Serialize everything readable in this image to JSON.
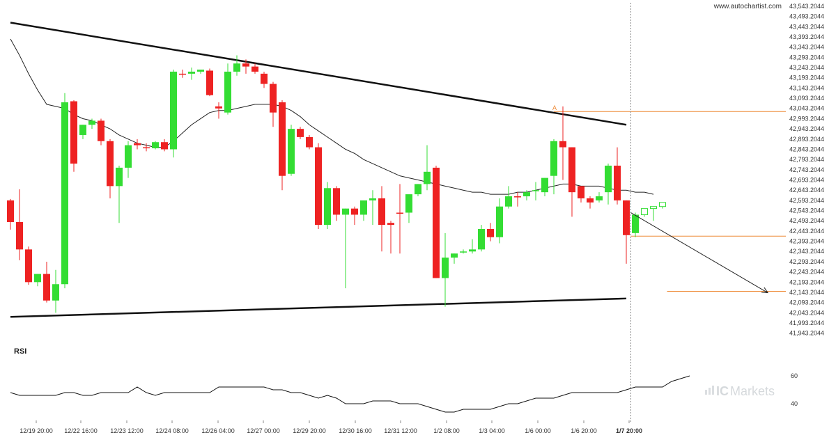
{
  "watermark": "www.autochartist.com",
  "brand": {
    "prefix": "IC",
    "name": "Markets"
  },
  "indicator_label": "RSI",
  "chart_data": [
    {
      "type": "candlestick",
      "ylim": [
        41918.2044,
        43553.2044
      ],
      "y_ticks": [
        "43,543.2044",
        "43,493.2044",
        "43,443.2044",
        "43,393.2044",
        "43,343.2044",
        "43,293.2044",
        "43,243.2044",
        "43,193.2044",
        "43,143.2044",
        "43,093.2044",
        "43,043.2044",
        "42,993.2044",
        "42,943.2044",
        "42,893.2044",
        "42,843.2044",
        "42,793.2044",
        "42,743.2044",
        "42,693.2044",
        "42,643.2044",
        "42,593.2044",
        "42,543.2044",
        "42,493.2044",
        "42,443.2044",
        "42,393.2044",
        "42,343.2044",
        "42,293.2044",
        "42,243.2044",
        "42,193.2044",
        "42,143.2044",
        "42,093.2044",
        "42,043.2044",
        "41,993.2044",
        "41,943.2044"
      ],
      "x_ticks": [
        "12/19 20:00",
        "12/22 16:00",
        "12/23 12:00",
        "12/24 08:00",
        "12/26 04:00",
        "12/27 00:00",
        "12/29 20:00",
        "12/30 16:00",
        "12/31 12:00",
        "1/2 08:00",
        "1/3 04:00",
        "1/6 00:00",
        "1/6 20:00",
        "1/7 20:00"
      ],
      "highlighted_x_tick": "1/7 20:00",
      "colors": {
        "up": "#33dd33",
        "down": "#ee2222",
        "pattern": "#111111",
        "ma": "#222222",
        "levels": "#ee8833",
        "projection": "#222222",
        "cursor": "#888888"
      },
      "candles": [
        {
          "o": 42593,
          "h": 42600,
          "l": 42450,
          "c": 42487,
          "f": false
        },
        {
          "o": 42487,
          "h": 42647,
          "l": 42300,
          "c": 42353,
          "f": false
        },
        {
          "o": 42353,
          "h": 42367,
          "l": 42180,
          "c": 42193,
          "f": false
        },
        {
          "o": 42193,
          "h": 42233,
          "l": 42173,
          "c": 42233,
          "f": true
        },
        {
          "o": 42233,
          "h": 42293,
          "l": 42093,
          "c": 42103,
          "f": false
        },
        {
          "o": 42103,
          "h": 42253,
          "l": 42043,
          "c": 42183,
          "f": true
        },
        {
          "o": 42183,
          "h": 43118,
          "l": 42163,
          "c": 43073,
          "f": true
        },
        {
          "o": 43078,
          "h": 43083,
          "l": 42733,
          "c": 42773,
          "f": false
        },
        {
          "o": 42913,
          "h": 42963,
          "l": 42893,
          "c": 42963,
          "f": true
        },
        {
          "o": 42963,
          "h": 42993,
          "l": 42943,
          "c": 42983,
          "f": true
        },
        {
          "o": 42983,
          "h": 42993,
          "l": 42863,
          "c": 42883,
          "f": false
        },
        {
          "o": 42883,
          "h": 42893,
          "l": 42603,
          "c": 42663,
          "f": false
        },
        {
          "o": 42663,
          "h": 42763,
          "l": 42483,
          "c": 42753,
          "f": true
        },
        {
          "o": 42753,
          "h": 42883,
          "l": 42703,
          "c": 42863,
          "f": true
        },
        {
          "o": 42863,
          "h": 42893,
          "l": 42843,
          "c": 42873,
          "f": false
        },
        {
          "o": 42853,
          "h": 42873,
          "l": 42833,
          "c": 42848,
          "f": false
        },
        {
          "o": 42848,
          "h": 42883,
          "l": 42843,
          "c": 42878,
          "f": true
        },
        {
          "o": 42878,
          "h": 42893,
          "l": 42833,
          "c": 42843,
          "f": false
        },
        {
          "o": 42843,
          "h": 43233,
          "l": 42803,
          "c": 43223,
          "f": true
        },
        {
          "o": 43213,
          "h": 43233,
          "l": 43193,
          "c": 43213,
          "f": false
        },
        {
          "o": 43213,
          "h": 43243,
          "l": 43183,
          "c": 43223,
          "f": true
        },
        {
          "o": 43223,
          "h": 43233,
          "l": 43213,
          "c": 43233,
          "f": true
        },
        {
          "o": 43228,
          "h": 43238,
          "l": 43103,
          "c": 43108,
          "f": false
        },
        {
          "o": 43043,
          "h": 43073,
          "l": 42993,
          "c": 43053,
          "f": false
        },
        {
          "o": 43023,
          "h": 43263,
          "l": 43013,
          "c": 43223,
          "f": true
        },
        {
          "o": 43223,
          "h": 43303,
          "l": 43203,
          "c": 43263,
          "f": true
        },
        {
          "o": 43263,
          "h": 43283,
          "l": 43213,
          "c": 43248,
          "f": false
        },
        {
          "o": 43248,
          "h": 43263,
          "l": 43213,
          "c": 43223,
          "f": false
        },
        {
          "o": 43213,
          "h": 43223,
          "l": 43143,
          "c": 43163,
          "f": false
        },
        {
          "o": 43163,
          "h": 43173,
          "l": 42953,
          "c": 43023,
          "f": false
        },
        {
          "o": 43073,
          "h": 43083,
          "l": 42643,
          "c": 42713,
          "f": false
        },
        {
          "o": 42943,
          "h": 42963,
          "l": 42713,
          "c": 42723,
          "f": true
        },
        {
          "o": 42943,
          "h": 42953,
          "l": 42893,
          "c": 42903,
          "f": false
        },
        {
          "o": 42903,
          "h": 42913,
          "l": 42843,
          "c": 42853,
          "f": false
        },
        {
          "o": 42853,
          "h": 42873,
          "l": 42453,
          "c": 42473,
          "f": false
        },
        {
          "o": 42473,
          "h": 42683,
          "l": 42453,
          "c": 42653,
          "f": true
        },
        {
          "o": 42653,
          "h": 42663,
          "l": 42493,
          "c": 42523,
          "f": false
        },
        {
          "o": 42523,
          "h": 42553,
          "l": 42163,
          "c": 42553,
          "f": true
        },
        {
          "o": 42553,
          "h": 42563,
          "l": 42473,
          "c": 42523,
          "f": false
        },
        {
          "o": 42523,
          "h": 42583,
          "l": 42493,
          "c": 42593,
          "f": true
        },
        {
          "o": 42593,
          "h": 42643,
          "l": 42473,
          "c": 42603,
          "f": true
        },
        {
          "o": 42603,
          "h": 42663,
          "l": 42343,
          "c": 42473,
          "f": false
        },
        {
          "o": 42483,
          "h": 42493,
          "l": 42333,
          "c": 42473,
          "f": false
        },
        {
          "o": 42533,
          "h": 42673,
          "l": 42333,
          "c": 42533,
          "f": false
        },
        {
          "o": 42533,
          "h": 42613,
          "l": 42483,
          "c": 42623,
          "f": true
        },
        {
          "o": 42623,
          "h": 42673,
          "l": 42613,
          "c": 42673,
          "f": true
        },
        {
          "o": 42673,
          "h": 42863,
          "l": 42643,
          "c": 42733,
          "f": true
        },
        {
          "o": 42753,
          "h": 42763,
          "l": 42213,
          "c": 42213,
          "f": false
        },
        {
          "o": 42213,
          "h": 42433,
          "l": 42073,
          "c": 42313,
          "f": true
        },
        {
          "o": 42313,
          "h": 42333,
          "l": 42283,
          "c": 42333,
          "f": true
        },
        {
          "o": 42343,
          "h": 42353,
          "l": 42333,
          "c": 42343,
          "f": true
        },
        {
          "o": 42343,
          "h": 42403,
          "l": 42333,
          "c": 42353,
          "f": true
        },
        {
          "o": 42353,
          "h": 42473,
          "l": 42343,
          "c": 42453,
          "f": true
        },
        {
          "o": 42453,
          "h": 42483,
          "l": 42393,
          "c": 42413,
          "f": false
        },
        {
          "o": 42413,
          "h": 42603,
          "l": 42383,
          "c": 42563,
          "f": true
        },
        {
          "o": 42563,
          "h": 42663,
          "l": 42553,
          "c": 42613,
          "f": true
        },
        {
          "o": 42613,
          "h": 42633,
          "l": 42563,
          "c": 42613,
          "f": false
        },
        {
          "o": 42613,
          "h": 42643,
          "l": 42593,
          "c": 42633,
          "f": true
        },
        {
          "o": 42643,
          "h": 42683,
          "l": 42593,
          "c": 42643,
          "f": true
        },
        {
          "o": 42633,
          "h": 42703,
          "l": 42613,
          "c": 42703,
          "f": true
        },
        {
          "o": 42713,
          "h": 42893,
          "l": 42623,
          "c": 42883,
          "f": true
        },
        {
          "o": 42883,
          "h": 43053,
          "l": 42693,
          "c": 42853,
          "f": false
        },
        {
          "o": 42853,
          "h": 42853,
          "l": 42513,
          "c": 42633,
          "f": false
        },
        {
          "o": 42663,
          "h": 42663,
          "l": 42583,
          "c": 42603,
          "f": false
        },
        {
          "o": 42603,
          "h": 42613,
          "l": 42553,
          "c": 42583,
          "f": false
        },
        {
          "o": 42593,
          "h": 42633,
          "l": 42583,
          "c": 42613,
          "f": true
        },
        {
          "o": 42633,
          "h": 42773,
          "l": 42573,
          "c": 42763,
          "f": true
        },
        {
          "o": 42763,
          "h": 42853,
          "l": 42573,
          "c": 42593,
          "f": false
        },
        {
          "o": 42593,
          "h": 42593,
          "l": 42283,
          "c": 42423,
          "f": false
        },
        {
          "o": 42433,
          "h": 42533,
          "l": 42413,
          "c": 42523,
          "f": true
        },
        {
          "o": 42523,
          "h": 42553,
          "l": 42513,
          "c": 42553,
          "f": true,
          "hollow": true
        },
        {
          "o": 42553,
          "h": 42563,
          "l": 42493,
          "c": 42563,
          "f": true,
          "hollow": true
        },
        {
          "o": 42563,
          "h": 42583,
          "l": 42553,
          "c": 42583,
          "f": true,
          "hollow": true
        }
      ],
      "moving_average": [
        43383,
        43303,
        43213,
        43133,
        43063,
        43053,
        43043,
        43013,
        42993,
        42983,
        42963,
        42943,
        42913,
        42893,
        42873,
        42863,
        42853,
        42853,
        42883,
        42923,
        42963,
        42993,
        43023,
        43033,
        43033,
        43043,
        43053,
        43063,
        43063,
        43063,
        43053,
        43033,
        43003,
        42963,
        42933,
        42903,
        42873,
        42843,
        42823,
        42793,
        42773,
        42753,
        42733,
        42713,
        42703,
        42693,
        42683,
        42673,
        42663,
        42653,
        42643,
        42633,
        42633,
        42623,
        42623,
        42623,
        42633,
        42633,
        42643,
        42653,
        42663,
        42673,
        42673,
        42663,
        42663,
        42663,
        42653,
        42643,
        42643,
        42633,
        42633,
        42623
      ],
      "resistance_line": {
        "start": [
          0,
          43463
        ],
        "end": [
          68,
          42963
        ]
      },
      "support_line": {
        "start": [
          0,
          42023
        ],
        "end": [
          68,
          42113
        ]
      },
      "resistance_level": {
        "value": 43028,
        "label": "A",
        "from_candle": 60
      },
      "near_level": {
        "value": 42418
      },
      "target_level": {
        "value": 42148
      },
      "projection": {
        "from": [
          68.5,
          42533
        ],
        "to": [
          83,
          42148
        ]
      },
      "cursor_candle": 68.5
    },
    {
      "type": "line",
      "title": "RSI",
      "ylim": [
        30,
        70
      ],
      "y_ticks": [
        60,
        40
      ],
      "values": [
        48,
        46,
        46,
        46,
        46,
        46,
        48,
        48,
        46,
        46,
        48,
        48,
        48,
        48,
        52,
        48,
        46,
        48,
        48,
        48,
        48,
        48,
        48,
        52,
        52,
        52,
        52,
        52,
        52,
        50,
        50,
        48,
        48,
        46,
        44,
        46,
        44,
        40,
        40,
        40,
        42,
        42,
        42,
        40,
        40,
        40,
        38,
        36,
        34,
        34,
        36,
        36,
        36,
        36,
        38,
        40,
        40,
        42,
        44,
        44,
        44,
        46,
        48,
        48,
        48,
        48,
        48,
        48,
        50,
        52,
        52,
        52,
        52,
        56,
        58,
        60
      ]
    }
  ]
}
